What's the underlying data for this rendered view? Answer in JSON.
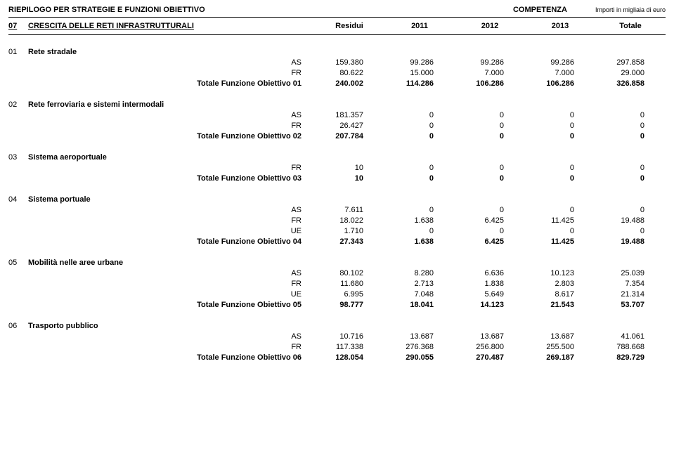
{
  "topbar": {
    "left": "RIEPILOGO PER STRATEGIE E FUNZIONI OBIETTIVO",
    "mid": "COMPETENZA",
    "right": "Importi in migliaia di euro"
  },
  "header": {
    "code": "07",
    "title": "CRESCITA DELLE RETI INFRASTRUTTURALI",
    "cols": [
      "Residui",
      "2011",
      "2012",
      "2013",
      "Totale"
    ]
  },
  "sections": [
    {
      "code": "01",
      "title": "Rete stradale",
      "rows": [
        {
          "label": "AS",
          "vals": [
            "159.380",
            "99.286",
            "99.286",
            "99.286",
            "297.858"
          ]
        },
        {
          "label": "FR",
          "vals": [
            "80.622",
            "15.000",
            "7.000",
            "7.000",
            "29.000"
          ]
        }
      ],
      "total": {
        "label": "Totale Funzione Obiettivo 01",
        "vals": [
          "240.002",
          "114.286",
          "106.286",
          "106.286",
          "326.858"
        ]
      }
    },
    {
      "code": "02",
      "title": "Rete ferroviaria e sistemi intermodali",
      "rows": [
        {
          "label": "AS",
          "vals": [
            "181.357",
            "0",
            "0",
            "0",
            "0"
          ]
        },
        {
          "label": "FR",
          "vals": [
            "26.427",
            "0",
            "0",
            "0",
            "0"
          ]
        }
      ],
      "total": {
        "label": "Totale Funzione Obiettivo 02",
        "vals": [
          "207.784",
          "0",
          "0",
          "0",
          "0"
        ]
      }
    },
    {
      "code": "03",
      "title": "Sistema aeroportuale",
      "rows": [
        {
          "label": "FR",
          "vals": [
            "10",
            "0",
            "0",
            "0",
            "0"
          ]
        }
      ],
      "total": {
        "label": "Totale Funzione Obiettivo 03",
        "vals": [
          "10",
          "0",
          "0",
          "0",
          "0"
        ]
      }
    },
    {
      "code": "04",
      "title": "Sistema portuale",
      "rows": [
        {
          "label": "AS",
          "vals": [
            "7.611",
            "0",
            "0",
            "0",
            "0"
          ]
        },
        {
          "label": "FR",
          "vals": [
            "18.022",
            "1.638",
            "6.425",
            "11.425",
            "19.488"
          ]
        },
        {
          "label": "UE",
          "vals": [
            "1.710",
            "0",
            "0",
            "0",
            "0"
          ]
        }
      ],
      "total": {
        "label": "Totale Funzione Obiettivo 04",
        "vals": [
          "27.343",
          "1.638",
          "6.425",
          "11.425",
          "19.488"
        ]
      }
    },
    {
      "code": "05",
      "title": "Mobilità nelle aree urbane",
      "rows": [
        {
          "label": "AS",
          "vals": [
            "80.102",
            "8.280",
            "6.636",
            "10.123",
            "25.039"
          ]
        },
        {
          "label": "FR",
          "vals": [
            "11.680",
            "2.713",
            "1.838",
            "2.803",
            "7.354"
          ]
        },
        {
          "label": "UE",
          "vals": [
            "6.995",
            "7.048",
            "5.649",
            "8.617",
            "21.314"
          ]
        }
      ],
      "total": {
        "label": "Totale Funzione Obiettivo 05",
        "vals": [
          "98.777",
          "18.041",
          "14.123",
          "21.543",
          "53.707"
        ]
      }
    },
    {
      "code": "06",
      "title": "Trasporto pubblico",
      "rows": [
        {
          "label": "AS",
          "vals": [
            "10.716",
            "13.687",
            "13.687",
            "13.687",
            "41.061"
          ]
        },
        {
          "label": "FR",
          "vals": [
            "117.338",
            "276.368",
            "256.800",
            "255.500",
            "788.668"
          ]
        }
      ],
      "total": {
        "label": "Totale Funzione Obiettivo 06",
        "vals": [
          "128.054",
          "290.055",
          "270.487",
          "269.187",
          "829.729"
        ]
      }
    }
  ]
}
